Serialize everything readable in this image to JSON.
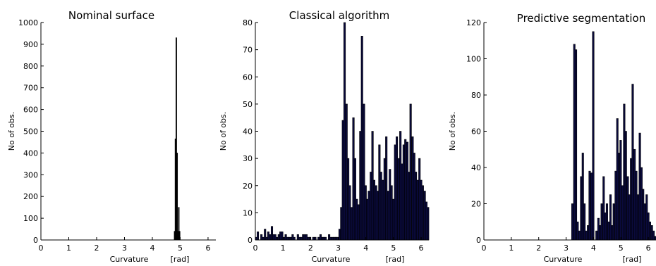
{
  "chart_data": [
    {
      "type": "bar",
      "title": "Nominal surface",
      "xlabel": "Curvature",
      "xunit": "[rad]",
      "ylabel": "No of obs.",
      "xlim": [
        0,
        6.28
      ],
      "ylim": [
        0,
        1000
      ],
      "xticks": [
        0,
        1,
        2,
        3,
        4,
        5,
        6
      ],
      "yticks": [
        0,
        100,
        200,
        300,
        400,
        500,
        600,
        700,
        800,
        900,
        1000
      ],
      "bar_width": 0.032,
      "bar_color": "#000000",
      "x": [
        4.8,
        4.83,
        4.86,
        4.89,
        4.92,
        4.95,
        4.98
      ],
      "values": [
        40,
        465,
        930,
        400,
        40,
        150,
        40
      ]
    },
    {
      "type": "bar",
      "title": "Classical algorithm",
      "xlabel": "Curvature",
      "xunit": "[rad]",
      "ylabel": "No of obs.",
      "xlim": [
        0,
        6.28
      ],
      "ylim": [
        0,
        80
      ],
      "xticks": [
        0,
        1,
        2,
        3,
        4,
        5,
        6
      ],
      "yticks": [
        0,
        10,
        20,
        30,
        40,
        50,
        60,
        70,
        80
      ],
      "bar_width": 0.0628,
      "bar_color": "#0a0a3c",
      "x": [
        0.03,
        0.09,
        0.16,
        0.22,
        0.28,
        0.35,
        0.41,
        0.47,
        0.53,
        0.6,
        0.66,
        0.72,
        0.78,
        0.85,
        0.91,
        0.97,
        1.04,
        1.1,
        1.16,
        1.22,
        1.29,
        1.35,
        1.41,
        1.48,
        1.54,
        1.6,
        1.66,
        1.73,
        1.79,
        1.85,
        1.92,
        1.98,
        2.04,
        2.1,
        2.17,
        2.23,
        2.29,
        2.36,
        2.42,
        2.48,
        2.54,
        2.61,
        2.67,
        2.73,
        2.8,
        2.86,
        2.92,
        2.98,
        3.05,
        3.11,
        3.17,
        3.23,
        3.3,
        3.36,
        3.42,
        3.49,
        3.55,
        3.61,
        3.67,
        3.74,
        3.8,
        3.86,
        3.93,
        3.99,
        4.05,
        4.11,
        4.18,
        4.24,
        4.3,
        4.37,
        4.43,
        4.49,
        4.55,
        4.62,
        4.68,
        4.74,
        4.81,
        4.87,
        4.93,
        4.99,
        5.06,
        5.12,
        5.18,
        5.25,
        5.31,
        5.37,
        5.43,
        5.5,
        5.56,
        5.62,
        5.69,
        5.75,
        5.81,
        5.87,
        5.94,
        6.0,
        6.06,
        6.13,
        6.19,
        6.25
      ],
      "values": [
        1,
        3,
        0,
        2,
        1,
        4,
        1,
        3,
        2,
        5,
        2,
        2,
        1,
        2,
        3,
        3,
        1,
        2,
        1,
        1,
        1,
        2,
        1,
        0,
        2,
        1,
        1,
        2,
        2,
        2,
        1,
        1,
        0,
        1,
        1,
        0,
        1,
        2,
        1,
        1,
        1,
        0,
        2,
        1,
        1,
        1,
        1,
        1,
        4,
        12,
        44,
        80,
        50,
        30,
        20,
        12,
        45,
        30,
        15,
        13,
        40,
        75,
        50,
        20,
        15,
        18,
        25,
        40,
        22,
        20,
        18,
        35,
        25,
        22,
        30,
        38,
        18,
        26,
        20,
        15,
        35,
        38,
        30,
        40,
        28,
        35,
        37,
        36,
        25,
        50,
        38,
        32,
        25,
        22,
        30,
        22,
        20,
        18,
        14,
        12
      ]
    },
    {
      "type": "bar",
      "title": "Predictive segmentation",
      "xlabel": "Curvature",
      "xunit": "[rad]",
      "ylabel": "No of obs.",
      "xlim": [
        0,
        6.28
      ],
      "ylim": [
        0,
        120
      ],
      "xticks": [
        0,
        1,
        2,
        3,
        4,
        5,
        6
      ],
      "yticks": [
        0,
        20,
        40,
        60,
        80,
        100,
        120
      ],
      "bar_width": 0.0628,
      "bar_color": "#0a0a3c",
      "x": [
        3.23,
        3.3,
        3.36,
        3.42,
        3.49,
        3.55,
        3.61,
        3.67,
        3.74,
        3.8,
        3.86,
        3.93,
        3.99,
        4.05,
        4.11,
        4.18,
        4.24,
        4.3,
        4.37,
        4.43,
        4.49,
        4.55,
        4.62,
        4.68,
        4.74,
        4.81,
        4.87,
        4.93,
        4.99,
        5.06,
        5.12,
        5.18,
        5.25,
        5.31,
        5.37,
        5.43,
        5.5,
        5.56,
        5.62,
        5.69,
        5.75,
        5.81,
        5.87,
        5.94,
        6.0,
        6.06,
        6.13,
        6.19,
        6.25
      ],
      "values": [
        20,
        108,
        105,
        10,
        5,
        35,
        48,
        20,
        5,
        8,
        38,
        37,
        115,
        0,
        5,
        12,
        8,
        20,
        35,
        15,
        20,
        10,
        25,
        8,
        20,
        38,
        67,
        48,
        55,
        30,
        75,
        60,
        35,
        25,
        45,
        86,
        50,
        38,
        25,
        59,
        40,
        28,
        20,
        25,
        15,
        10,
        8,
        5,
        2
      ]
    }
  ]
}
